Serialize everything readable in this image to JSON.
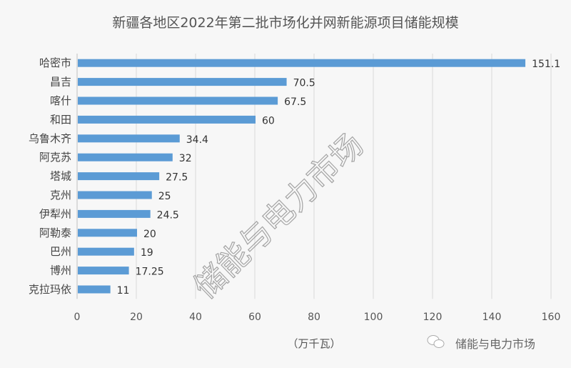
{
  "chart_data": {
    "type": "bar",
    "orientation": "horizontal",
    "title": "新疆各地区2022年第二批市场化并网新能源项目储能规模",
    "xlabel": "（万千瓦）",
    "ylabel": "",
    "xlim": [
      0,
      160
    ],
    "xticks": [
      0,
      20,
      40,
      60,
      80,
      100,
      120,
      140,
      160
    ],
    "grid": true,
    "categories": [
      "哈密市",
      "昌吉",
      "喀什",
      "和田",
      "乌鲁木齐",
      "阿克苏",
      "塔城",
      "克州",
      "伊犁州",
      "阿勒泰",
      "巴州",
      "博州",
      "克拉玛依"
    ],
    "values": [
      151.1,
      70.5,
      67.5,
      60,
      34.4,
      32,
      27.5,
      25,
      24.5,
      20,
      19,
      17.25,
      11
    ],
    "value_labels": [
      "151.1",
      "70.5",
      "67.5",
      "60",
      "34.4",
      "32",
      "27.5",
      "25",
      "24.5",
      "20",
      "19",
      "17.25",
      "11"
    ],
    "bar_color": "#5b9bd5",
    "legend": "none"
  },
  "watermark": "储能与电力市场",
  "brand": {
    "icon": "wechat-icon",
    "label": "储能与电力市场"
  }
}
